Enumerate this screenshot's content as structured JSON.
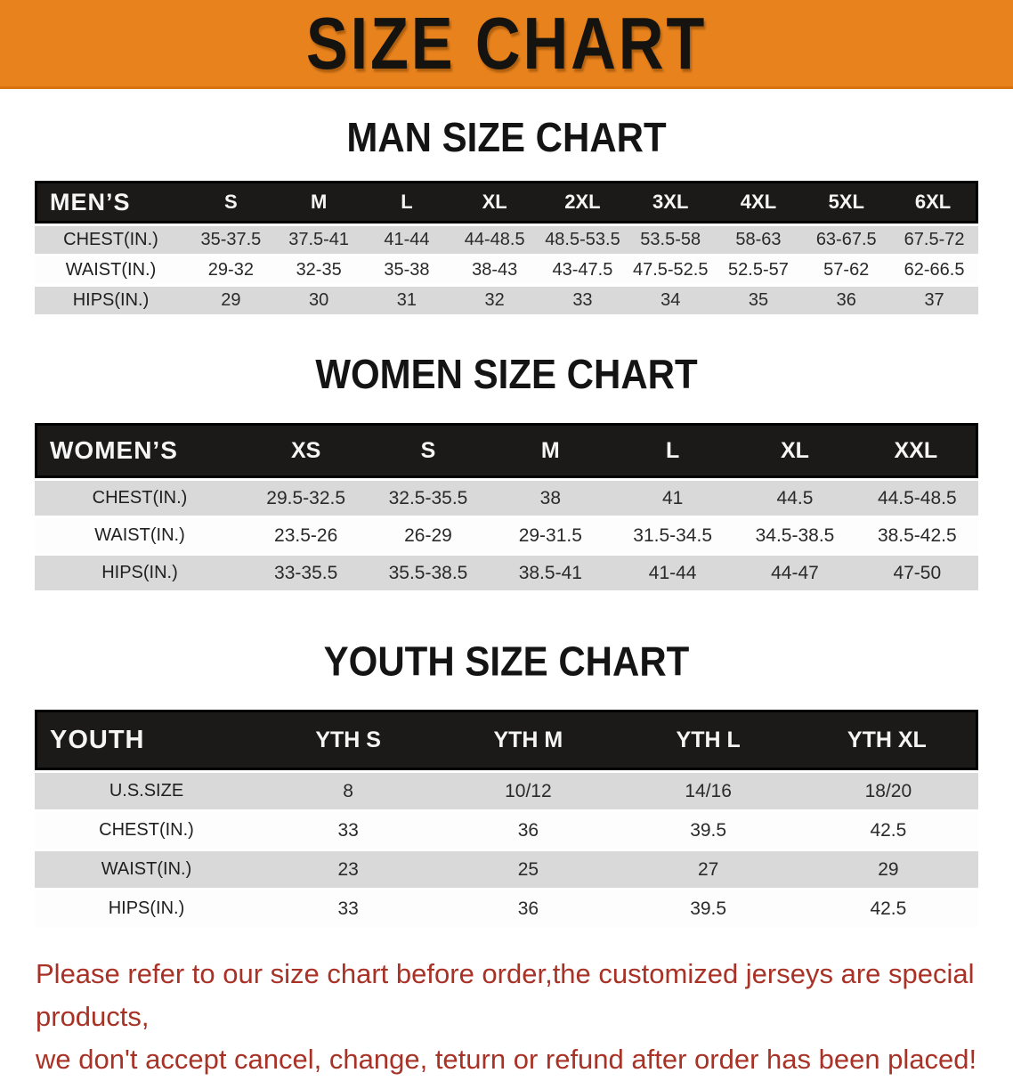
{
  "banner": {
    "title": "SIZE CHART",
    "bg_color": "#E8821D"
  },
  "sections": [
    {
      "id": "men",
      "heading": "MAN SIZE CHART",
      "table": {
        "corner": "MEN’S",
        "sizes": [
          "S",
          "M",
          "L",
          "XL",
          "2XL",
          "3XL",
          "4XL",
          "5XL",
          "6XL"
        ],
        "rows": [
          {
            "label": "CHEST(IN.)",
            "values": [
              "35-37.5",
              "37.5-41",
              "41-44",
              "44-48.5",
              "48.5-53.5",
              "53.5-58",
              "58-63",
              "63-67.5",
              "67.5-72"
            ]
          },
          {
            "label": "WAIST(IN.)",
            "values": [
              "29-32",
              "32-35",
              "35-38",
              "38-43",
              "43-47.5",
              "47.5-52.5",
              "52.5-57",
              "57-62",
              "62-66.5"
            ]
          },
          {
            "label": "HIPS(IN.)",
            "values": [
              "29",
              "30",
              "31",
              "32",
              "33",
              "34",
              "35",
              "36",
              "37"
            ]
          }
        ]
      }
    },
    {
      "id": "women",
      "heading": "WOMEN SIZE CHART",
      "table": {
        "corner": "WOMEN’S",
        "sizes": [
          "XS",
          "S",
          "M",
          "L",
          "XL",
          "XXL"
        ],
        "rows": [
          {
            "label": "CHEST(IN.)",
            "values": [
              "29.5-32.5",
              "32.5-35.5",
              "38",
              "41",
              "44.5",
              "44.5-48.5"
            ]
          },
          {
            "label": "WAIST(IN.)",
            "values": [
              "23.5-26",
              "26-29",
              "29-31.5",
              "31.5-34.5",
              "34.5-38.5",
              "38.5-42.5"
            ]
          },
          {
            "label": "HIPS(IN.)",
            "values": [
              "33-35.5",
              "35.5-38.5",
              "38.5-41",
              "41-44",
              "44-47",
              "47-50"
            ]
          }
        ]
      }
    },
    {
      "id": "youth",
      "heading": "YOUTH SIZE CHART",
      "table": {
        "corner": "YOUTH",
        "sizes": [
          "YTH S",
          "YTH M",
          "YTH L",
          "YTH XL"
        ],
        "rows": [
          {
            "label": "U.S.SIZE",
            "values": [
              "8",
              "10/12",
              "14/16",
              "18/20"
            ]
          },
          {
            "label": "CHEST(IN.)",
            "values": [
              "33",
              "36",
              "39.5",
              "42.5"
            ]
          },
          {
            "label": "WAIST(IN.)",
            "values": [
              "23",
              "25",
              "27",
              "29"
            ]
          },
          {
            "label": "HIPS(IN.)",
            "values": [
              "33",
              "36",
              "39.5",
              "42.5"
            ]
          }
        ]
      }
    }
  ],
  "footer": {
    "lines": [
      "Please refer to our size chart before order,the customized jerseys are special products,",
      "we don't accept cancel, change, teturn or refund after order has been placed!"
    ],
    "text_color": "#A93226"
  },
  "colors": {
    "banner_orange": "#E8821D",
    "table_header_black": "#1B1A19",
    "row_stripe_gray": "#D9D9D9",
    "row_stripe_white": "#FDFDFD"
  }
}
